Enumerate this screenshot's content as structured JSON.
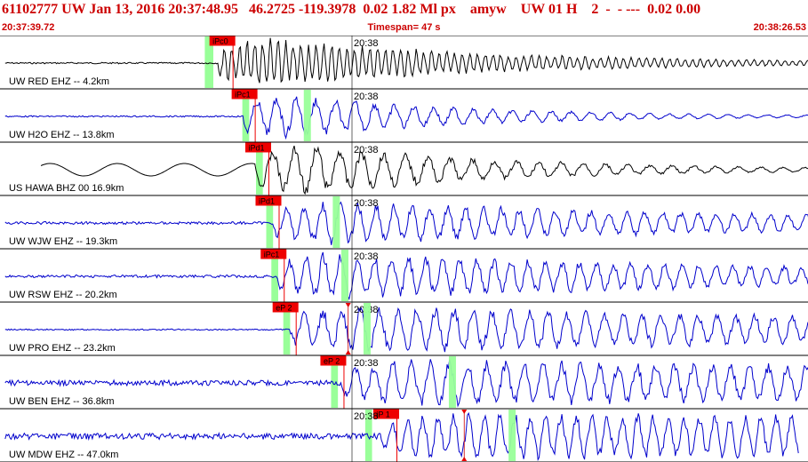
{
  "header": {
    "title": "61102777 UW Jan 13, 2016 20:37:48.95   46.2725 -119.3978  0.02 1.82 Ml px    amyw    UW 01 H    2  -  - ---  0.02 0.00",
    "start_time": "20:37:39.72",
    "end_time": "20:38:26.53",
    "timespan": "Timespan=  47 s"
  },
  "minute_marker": "20:38",
  "colors": {
    "trace": "#0000cc",
    "trace_alt": "#000000",
    "pick_box": "#ee0000",
    "pick_line": "#ee0000",
    "window": "#99ff99",
    "header_text": "#cc0000"
  },
  "chart_data": {
    "type": "line",
    "title": "61102777 UW Jan 13, 2016 20:37:48.95   46.2725 -119.3978  0.02 1.82 Ml px    amyw    UW 01 H    2  -  - ---  0.02 0.00",
    "x_range": [
      "20:37:39.72",
      "20:38:26.53"
    ],
    "x_unit": "s",
    "traces": [
      {
        "label": "UW RED EHZ -- 4.2km",
        "pick": "iPc0",
        "color": "black",
        "pick_time_s": 12.3,
        "window_s": [
          12.0,
          12.5
        ],
        "onset_s": 12.8,
        "end_s": 48.5,
        "amp": 28,
        "noise": 0.8,
        "period": 0.45,
        "decay": 0.07
      },
      {
        "label": "UW H2O EHZ -- 13.8km",
        "pick": "iPc1",
        "color": "blue",
        "pick_time_s": 13.6,
        "window_s": [
          14.2,
          14.6
        ],
        "onset_s": 14.2,
        "end_s": 51.0,
        "amp": 26,
        "noise": 0.8,
        "period": 1.15,
        "decay": 0.09
      },
      {
        "label": "US HAWA BHZ 00 16.9km",
        "pick": "iPd1",
        "color": "black",
        "pick_time_s": 14.4,
        "window_s": [
          15.0,
          15.4
        ],
        "onset_s": 15.0,
        "end_s": 51.5,
        "amp": 30,
        "noise": 7,
        "period": 1.3,
        "decay": 0.08
      },
      {
        "label": "UW WJW EHZ -- 19.3km",
        "pick": "iPd1",
        "color": "blue",
        "pick_time_s": 15.0,
        "window_s": [
          15.6,
          16.0
        ],
        "onset_s": 16.0,
        "end_s": 52.2,
        "amp": 22,
        "noise": 1.5,
        "period": 1.05,
        "decay": 0.03
      },
      {
        "label": "UW RSW EHZ -- 20.2km",
        "pick": "iPc1",
        "color": "blue",
        "pick_time_s": 15.3,
        "window_s": [
          15.9,
          16.3
        ],
        "onset_s": 16.2,
        "end_s": 52.5,
        "amp": 24,
        "noise": 1.5,
        "period": 1.0,
        "decay": 0.03
      },
      {
        "label": "UW PRO EHZ -- 23.2km",
        "pick": "eP 2",
        "color": "blue",
        "pick_time_s": 16.0,
        "window_s": [
          16.6,
          17.0
        ],
        "onset_s": 17.0,
        "end_s": 53.0,
        "amp": 24,
        "noise": 0.7,
        "period": 1.1,
        "decay": 0.02
      },
      {
        "label": "UW BEN EHZ -- 36.8km",
        "pick": "eP 2",
        "color": "blue",
        "pick_time_s": 18.8,
        "window_s": [
          19.4,
          19.8
        ],
        "onset_s": 20.0,
        "end_s": 56.0,
        "amp": 22,
        "noise": 3,
        "period": 1.1,
        "decay": 0.01
      },
      {
        "label": "UW MDW EHZ -- 47.0km",
        "pick": "iP 1",
        "color": "blue",
        "pick_time_s": 21.9,
        "window_s": [
          21.4,
          21.8
        ],
        "onset_s": 22.3,
        "end_s": 46.8,
        "amp": 22,
        "noise": 3.5,
        "period": 0.9,
        "decay": 0.005
      }
    ],
    "window_marks": [
      {
        "trace": 2,
        "time_s": 17.8
      },
      {
        "trace": 4,
        "time_s": 19.5
      },
      {
        "trace": 5,
        "time_s": 20.0
      },
      {
        "trace": 6,
        "time_s": 21.3
      },
      {
        "trace": 7,
        "time_s": 26.3
      },
      {
        "trace": 8,
        "time_s": 29.8
      }
    ],
    "triangle_marks": [
      {
        "trace": 6,
        "time_s": 20.4
      },
      {
        "trace": 8,
        "time_s": 27.2
      }
    ]
  }
}
